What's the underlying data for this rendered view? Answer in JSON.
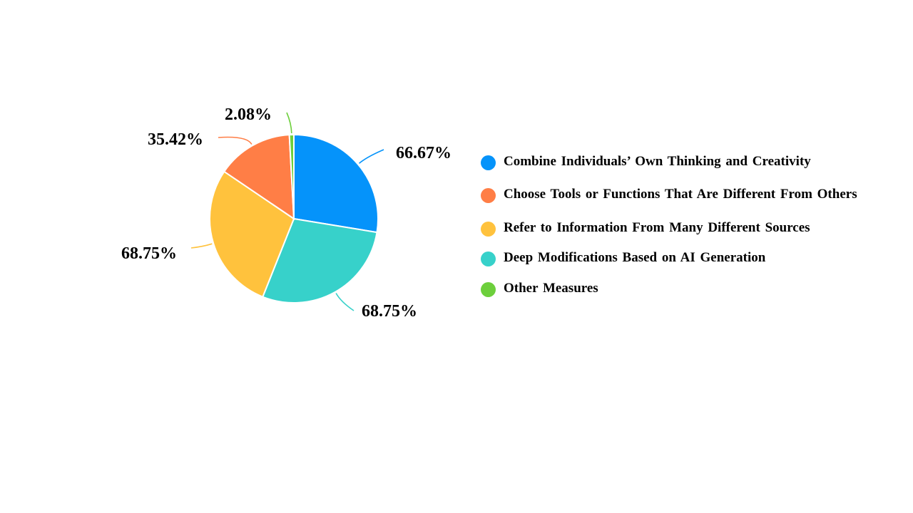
{
  "chart_data": {
    "type": "pie",
    "categories": [
      "Combine Individuals’ Own Thinking  and Creativity",
      "Choose Tools or Functions That Are Different From Others",
      "Refer to Information  From Many Different Sources",
      "Deep Modifications  Based on AI Generation",
      "Other Measures"
    ],
    "values": [
      66.67,
      35.42,
      68.75,
      68.75,
      2.08
    ],
    "value_labels": [
      "66.67%",
      "35.42%",
      "68.75%",
      "68.75%",
      "2.08%"
    ],
    "colors": [
      "#0593fa",
      "#ff7e46",
      "#ffc23d",
      "#37d1ca",
      "#6dcf3c"
    ],
    "slice_order_clockwise_from_top": [
      0,
      3,
      2,
      1,
      4
    ],
    "legend_position": "right"
  }
}
